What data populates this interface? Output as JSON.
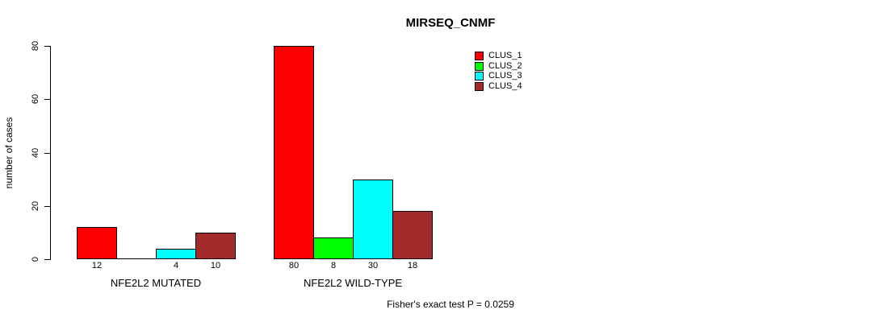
{
  "chart_data": {
    "type": "bar",
    "title": "MIRSEQ_CNMF",
    "xlabel": "",
    "ylabel": "number of cases",
    "ylim": [
      0,
      80
    ],
    "yticks": [
      0,
      20,
      40,
      60,
      80
    ],
    "grid": false,
    "legend_position": "top-right",
    "bar_border_color": "#000000",
    "background_color": "#FFFFFF",
    "series": [
      {
        "name": "CLUS_1",
        "color": "#FF0000"
      },
      {
        "name": "CLUS_2",
        "color": "#00FF00"
      },
      {
        "name": "CLUS_3",
        "color": "#00FFFF"
      },
      {
        "name": "CLUS_4",
        "color": "#A52A2A"
      }
    ],
    "groups": [
      {
        "label": "NFE2L2 MUTATED",
        "values": [
          12,
          0,
          4,
          10
        ]
      },
      {
        "label": "NFE2L2 WILD-TYPE",
        "values": [
          80,
          8,
          30,
          18
        ]
      }
    ],
    "bar_value_labels": [
      [
        "12",
        "",
        "4",
        "10"
      ],
      [
        "80",
        "8",
        "30",
        "18"
      ]
    ],
    "annotation": "Fisher's exact test P = 0.0259"
  }
}
